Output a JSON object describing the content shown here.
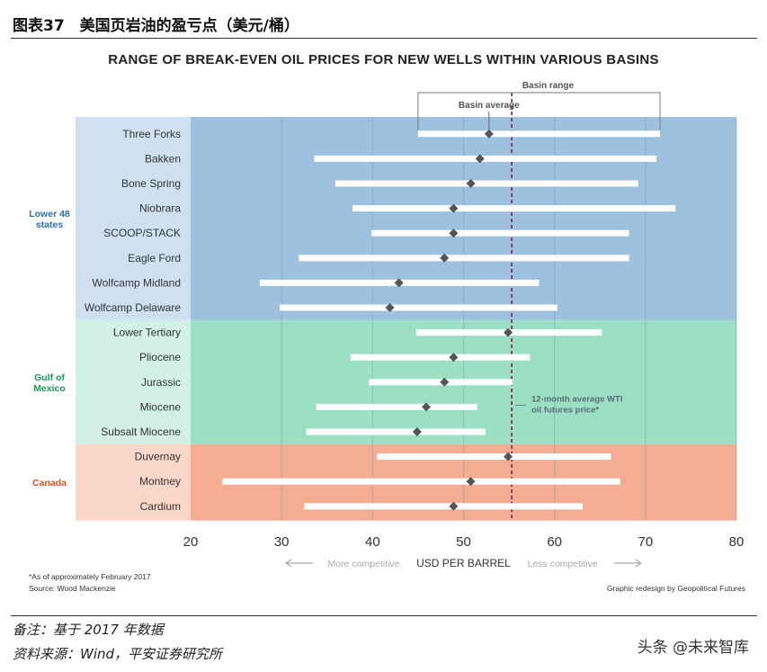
{
  "header": {
    "figure_title": "图表37　美国页岩油的盈亏点（美元/桶）"
  },
  "chart_data": {
    "type": "range",
    "title": "RANGE OF BREAK-EVEN OIL PRICES FOR NEW WELLS WITHIN VARIOUS BASINS",
    "xlabel": "USD PER BARREL",
    "x_ticks": [
      20,
      30,
      40,
      50,
      60,
      70,
      80
    ],
    "xlim": [
      20,
      80
    ],
    "axis_hints": {
      "left": "More competitive",
      "right": "Less competitive"
    },
    "legend": {
      "range_label": "Basin range",
      "average_label": "Basin average"
    },
    "wti_line": {
      "value": 55.3,
      "label_line1": "12-month average WTI",
      "label_line2": "oil futures price*"
    },
    "groups": [
      {
        "name_line1": "Lower 48",
        "name_line2": "states",
        "color": "#9dc1df",
        "label_bg": "#cfe1f0",
        "label_color": "#2a6fb0"
      },
      {
        "name_line1": "Gulf of",
        "name_line2": "Mexico",
        "color": "#9be0c4",
        "label_bg": "#d2f1e4",
        "label_color": "#1a9a55"
      },
      {
        "name_line1": "Canada",
        "name_line2": "",
        "color": "#f4ad93",
        "label_bg": "#fbd7ca",
        "label_color": "#d9541f"
      }
    ],
    "basins": [
      {
        "name": "Three Forks",
        "group": 0,
        "min": 45.0,
        "max": 71.6,
        "avg": 52.8
      },
      {
        "name": "Bakken",
        "group": 0,
        "min": 33.6,
        "max": 71.2,
        "avg": 51.8
      },
      {
        "name": "Bone Spring",
        "group": 0,
        "min": 35.9,
        "max": 69.2,
        "avg": 50.8
      },
      {
        "name": "Niobrara",
        "group": 0,
        "min": 37.8,
        "max": 73.3,
        "avg": 48.9
      },
      {
        "name": "SCOOP/STACK",
        "group": 0,
        "min": 39.9,
        "max": 68.2,
        "avg": 48.9
      },
      {
        "name": "Eagle Ford",
        "group": 0,
        "min": 31.9,
        "max": 68.2,
        "avg": 47.9
      },
      {
        "name": "Wolfcamp Midland",
        "group": 0,
        "min": 27.6,
        "max": 58.3,
        "avg": 42.9
      },
      {
        "name": "Wolfcamp Delaware",
        "group": 0,
        "min": 29.8,
        "max": 60.3,
        "avg": 41.9
      },
      {
        "name": "Lower Tertiary",
        "group": 1,
        "min": 44.8,
        "max": 65.2,
        "avg": 54.9
      },
      {
        "name": "Pliocene",
        "group": 1,
        "min": 37.6,
        "max": 57.3,
        "avg": 48.9
      },
      {
        "name": "Jurassic",
        "group": 1,
        "min": 39.6,
        "max": 55.4,
        "avg": 47.9
      },
      {
        "name": "Miocene",
        "group": 1,
        "min": 33.8,
        "max": 51.5,
        "avg": 45.9
      },
      {
        "name": "Subsalt Miocene",
        "group": 1,
        "min": 32.7,
        "max": 52.4,
        "avg": 44.9
      },
      {
        "name": "Duvernay",
        "group": 2,
        "min": 40.5,
        "max": 66.2,
        "avg": 54.9
      },
      {
        "name": "Montney",
        "group": 2,
        "min": 23.5,
        "max": 67.2,
        "avg": 50.8
      },
      {
        "name": "Cardium",
        "group": 2,
        "min": 32.5,
        "max": 63.1,
        "avg": 48.9
      }
    ]
  },
  "notes": {
    "footnote": "*As of approximately February 2017",
    "source": "Source: Wood Mackenzie",
    "credit": "Graphic redesign by Geopolitical Futures"
  },
  "footer": {
    "remark": "备注：基于 2017 年数据",
    "source": "资料来源：Wind，平安证券研究所",
    "watermark": "头条 @未来智库"
  }
}
